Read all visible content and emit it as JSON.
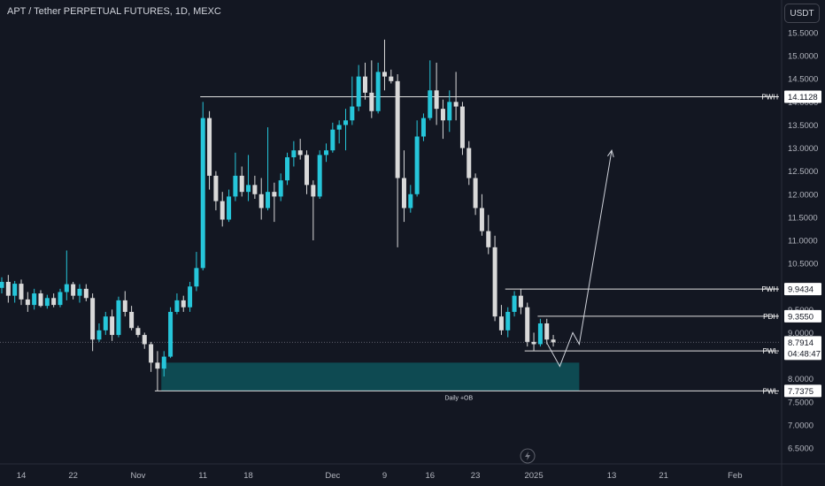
{
  "header": {
    "title": "APT / Tether PERPETUAL FUTURES, 1D, MEXC",
    "currency_button": "USDT"
  },
  "colors": {
    "background": "#131722",
    "bull": "#26c6da",
    "bear": "#d9d9d9",
    "level_line": "#e0e0e0",
    "zone": "#0e4a52",
    "axis_text": "#b2b5be"
  },
  "chart_data": {
    "type": "candlestick",
    "symbol": "APT / Tether PERPETUAL FUTURES",
    "timeframe": "1D",
    "exchange": "MEXC",
    "y_ticks": [
      "15.5000",
      "15.0000",
      "14.5000",
      "14.0000",
      "13.5000",
      "13.0000",
      "12.5000",
      "12.0000",
      "11.5000",
      "11.0000",
      "10.5000",
      "10.0000",
      "9.5000",
      "9.0000",
      "8.5000",
      "8.0000",
      "7.5000",
      "7.0000",
      "6.5000"
    ],
    "ylim": [
      6.2,
      15.75
    ],
    "x_ticks": [
      {
        "label": "14",
        "date": "2024-10-14"
      },
      {
        "label": "22",
        "date": "2024-10-22"
      },
      {
        "label": "Nov",
        "date": "2024-11-01"
      },
      {
        "label": "11",
        "date": "2024-11-11"
      },
      {
        "label": "18",
        "date": "2024-11-18"
      },
      {
        "label": "Dec",
        "date": "2024-12-01"
      },
      {
        "label": "9",
        "date": "2024-12-09"
      },
      {
        "label": "16",
        "date": "2024-12-16"
      },
      {
        "label": "23",
        "date": "2024-12-23"
      },
      {
        "label": "2025",
        "date": "2025-01-01"
      },
      {
        "label": "13",
        "date": "2025-01-13"
      },
      {
        "label": "21",
        "date": "2025-01-21"
      },
      {
        "label": "Feb",
        "date": "2025-02-01"
      }
    ],
    "candles": [
      {
        "date": "2024-10-07",
        "o": 8.95,
        "h": 9.15,
        "l": 8.68,
        "c": 8.9
      },
      {
        "date": "2024-10-08",
        "o": 8.9,
        "h": 9.3,
        "l": 8.8,
        "c": 9.25
      },
      {
        "date": "2024-10-09",
        "o": 9.25,
        "h": 9.85,
        "l": 9.15,
        "c": 9.78
      },
      {
        "date": "2024-10-10",
        "o": 9.78,
        "h": 10.05,
        "l": 9.68,
        "c": 9.97
      },
      {
        "date": "2024-10-11",
        "o": 9.97,
        "h": 10.2,
        "l": 9.85,
        "c": 10.1
      },
      {
        "date": "2024-10-12",
        "o": 10.1,
        "h": 10.25,
        "l": 9.65,
        "c": 9.8
      },
      {
        "date": "2024-10-13",
        "o": 9.8,
        "h": 10.12,
        "l": 9.65,
        "c": 10.06
      },
      {
        "date": "2024-10-14",
        "o": 10.06,
        "h": 10.15,
        "l": 9.6,
        "c": 9.72
      },
      {
        "date": "2024-10-15",
        "o": 9.72,
        "h": 9.88,
        "l": 9.45,
        "c": 9.6
      },
      {
        "date": "2024-10-16",
        "o": 9.6,
        "h": 9.95,
        "l": 9.5,
        "c": 9.85
      },
      {
        "date": "2024-10-17",
        "o": 9.85,
        "h": 9.92,
        "l": 9.55,
        "c": 9.58
      },
      {
        "date": "2024-10-18",
        "o": 9.58,
        "h": 9.82,
        "l": 9.52,
        "c": 9.75
      },
      {
        "date": "2024-10-19",
        "o": 9.75,
        "h": 9.85,
        "l": 9.55,
        "c": 9.6
      },
      {
        "date": "2024-10-20",
        "o": 9.6,
        "h": 9.95,
        "l": 9.55,
        "c": 9.88
      },
      {
        "date": "2024-10-21",
        "o": 9.88,
        "h": 10.78,
        "l": 9.7,
        "c": 10.05
      },
      {
        "date": "2024-10-22",
        "o": 10.05,
        "h": 10.1,
        "l": 9.72,
        "c": 9.8
      },
      {
        "date": "2024-10-23",
        "o": 9.8,
        "h": 10.05,
        "l": 9.65,
        "c": 9.95
      },
      {
        "date": "2024-10-24",
        "o": 9.95,
        "h": 10.05,
        "l": 9.68,
        "c": 9.75
      },
      {
        "date": "2024-10-25",
        "o": 9.75,
        "h": 9.85,
        "l": 8.6,
        "c": 8.85
      },
      {
        "date": "2024-10-26",
        "o": 8.85,
        "h": 9.2,
        "l": 8.8,
        "c": 9.05
      },
      {
        "date": "2024-10-27",
        "o": 9.05,
        "h": 9.45,
        "l": 8.95,
        "c": 9.35
      },
      {
        "date": "2024-10-28",
        "o": 9.35,
        "h": 9.5,
        "l": 8.82,
        "c": 8.95
      },
      {
        "date": "2024-10-29",
        "o": 8.95,
        "h": 9.78,
        "l": 8.9,
        "c": 9.7
      },
      {
        "date": "2024-10-30",
        "o": 9.7,
        "h": 9.9,
        "l": 9.35,
        "c": 9.45
      },
      {
        "date": "2024-10-31",
        "o": 9.45,
        "h": 9.58,
        "l": 9.05,
        "c": 9.1
      },
      {
        "date": "2024-11-01",
        "o": 9.1,
        "h": 9.15,
        "l": 8.9,
        "c": 8.95
      },
      {
        "date": "2024-11-02",
        "o": 8.95,
        "h": 9.0,
        "l": 8.65,
        "c": 8.75
      },
      {
        "date": "2024-11-03",
        "o": 8.75,
        "h": 8.8,
        "l": 8.15,
        "c": 8.35
      },
      {
        "date": "2024-11-04",
        "o": 8.35,
        "h": 8.6,
        "l": 7.74,
        "c": 8.22
      },
      {
        "date": "2024-11-05",
        "o": 8.22,
        "h": 8.6,
        "l": 8.05,
        "c": 8.48
      },
      {
        "date": "2024-11-06",
        "o": 8.48,
        "h": 9.55,
        "l": 8.45,
        "c": 9.45
      },
      {
        "date": "2024-11-07",
        "o": 9.45,
        "h": 9.85,
        "l": 9.4,
        "c": 9.7
      },
      {
        "date": "2024-11-08",
        "o": 9.7,
        "h": 9.8,
        "l": 9.45,
        "c": 9.55
      },
      {
        "date": "2024-11-09",
        "o": 9.55,
        "h": 10.1,
        "l": 9.45,
        "c": 10.0
      },
      {
        "date": "2024-11-10",
        "o": 10.0,
        "h": 10.75,
        "l": 9.9,
        "c": 10.4
      },
      {
        "date": "2024-11-11",
        "o": 10.4,
        "h": 14.0,
        "l": 10.35,
        "c": 13.65
      },
      {
        "date": "2024-11-12",
        "o": 13.65,
        "h": 13.8,
        "l": 12.1,
        "c": 12.4
      },
      {
        "date": "2024-11-13",
        "o": 12.4,
        "h": 12.5,
        "l": 11.65,
        "c": 11.85
      },
      {
        "date": "2024-11-14",
        "o": 11.85,
        "h": 12.05,
        "l": 11.3,
        "c": 11.45
      },
      {
        "date": "2024-11-15",
        "o": 11.45,
        "h": 12.1,
        "l": 11.4,
        "c": 11.95
      },
      {
        "date": "2024-11-16",
        "o": 11.95,
        "h": 12.9,
        "l": 11.85,
        "c": 12.4
      },
      {
        "date": "2024-11-17",
        "o": 12.4,
        "h": 12.6,
        "l": 11.95,
        "c": 12.05
      },
      {
        "date": "2024-11-18",
        "o": 12.05,
        "h": 12.85,
        "l": 11.85,
        "c": 12.2
      },
      {
        "date": "2024-11-19",
        "o": 12.2,
        "h": 12.4,
        "l": 11.9,
        "c": 12.0
      },
      {
        "date": "2024-11-20",
        "o": 12.0,
        "h": 12.35,
        "l": 11.45,
        "c": 11.7
      },
      {
        "date": "2024-11-21",
        "o": 11.7,
        "h": 13.45,
        "l": 11.65,
        "c": 12.05
      },
      {
        "date": "2024-11-22",
        "o": 12.05,
        "h": 12.25,
        "l": 11.4,
        "c": 11.95
      },
      {
        "date": "2024-11-23",
        "o": 11.95,
        "h": 12.45,
        "l": 11.85,
        "c": 12.3
      },
      {
        "date": "2024-11-24",
        "o": 12.3,
        "h": 12.9,
        "l": 12.2,
        "c": 12.8
      },
      {
        "date": "2024-11-25",
        "o": 12.8,
        "h": 13.15,
        "l": 12.6,
        "c": 12.95
      },
      {
        "date": "2024-11-26",
        "o": 12.95,
        "h": 13.2,
        "l": 12.75,
        "c": 12.85
      },
      {
        "date": "2024-11-27",
        "o": 12.85,
        "h": 12.95,
        "l": 12.0,
        "c": 12.2
      },
      {
        "date": "2024-11-28",
        "o": 12.2,
        "h": 12.3,
        "l": 11.0,
        "c": 11.95
      },
      {
        "date": "2024-11-29",
        "o": 11.95,
        "h": 12.95,
        "l": 11.9,
        "c": 12.85
      },
      {
        "date": "2024-11-30",
        "o": 12.85,
        "h": 13.1,
        "l": 12.7,
        "c": 12.95
      },
      {
        "date": "2024-12-01",
        "o": 12.95,
        "h": 13.55,
        "l": 12.9,
        "c": 13.4
      },
      {
        "date": "2024-12-02",
        "o": 13.4,
        "h": 13.6,
        "l": 13.1,
        "c": 13.5
      },
      {
        "date": "2024-12-03",
        "o": 13.5,
        "h": 13.85,
        "l": 12.95,
        "c": 13.6
      },
      {
        "date": "2024-12-04",
        "o": 13.6,
        "h": 14.55,
        "l": 13.5,
        "c": 13.9
      },
      {
        "date": "2024-12-05",
        "o": 13.9,
        "h": 14.8,
        "l": 13.8,
        "c": 14.55
      },
      {
        "date": "2024-12-06",
        "o": 14.55,
        "h": 14.85,
        "l": 14.05,
        "c": 14.2
      },
      {
        "date": "2024-12-07",
        "o": 14.2,
        "h": 14.9,
        "l": 13.65,
        "c": 13.8
      },
      {
        "date": "2024-12-08",
        "o": 13.8,
        "h": 14.85,
        "l": 13.75,
        "c": 14.65
      },
      {
        "date": "2024-12-09",
        "o": 14.65,
        "h": 15.35,
        "l": 14.25,
        "c": 14.55
      },
      {
        "date": "2024-12-10",
        "o": 14.55,
        "h": 14.7,
        "l": 14.4,
        "c": 14.45
      },
      {
        "date": "2024-12-11",
        "o": 14.45,
        "h": 14.6,
        "l": 10.85,
        "c": 12.35
      },
      {
        "date": "2024-12-12",
        "o": 12.35,
        "h": 12.95,
        "l": 11.4,
        "c": 11.7
      },
      {
        "date": "2024-12-13",
        "o": 11.7,
        "h": 12.2,
        "l": 11.6,
        "c": 12.0
      },
      {
        "date": "2024-12-14",
        "o": 12.0,
        "h": 13.6,
        "l": 11.95,
        "c": 13.25
      },
      {
        "date": "2024-12-15",
        "o": 13.25,
        "h": 13.75,
        "l": 13.15,
        "c": 13.65
      },
      {
        "date": "2024-12-16",
        "o": 13.65,
        "h": 14.9,
        "l": 13.6,
        "c": 14.25
      },
      {
        "date": "2024-12-17",
        "o": 14.25,
        "h": 14.85,
        "l": 13.5,
        "c": 13.85
      },
      {
        "date": "2024-12-18",
        "o": 13.85,
        "h": 14.05,
        "l": 13.2,
        "c": 13.6
      },
      {
        "date": "2024-12-19",
        "o": 13.6,
        "h": 14.25,
        "l": 13.35,
        "c": 14.0
      },
      {
        "date": "2024-12-20",
        "o": 14.0,
        "h": 14.65,
        "l": 13.6,
        "c": 13.9
      },
      {
        "date": "2024-12-21",
        "o": 13.9,
        "h": 14.0,
        "l": 12.85,
        "c": 13.0
      },
      {
        "date": "2024-12-22",
        "o": 13.0,
        "h": 13.15,
        "l": 12.2,
        "c": 12.35
      },
      {
        "date": "2024-12-23",
        "o": 12.35,
        "h": 12.45,
        "l": 11.55,
        "c": 11.7
      },
      {
        "date": "2024-12-24",
        "o": 11.7,
        "h": 12.0,
        "l": 11.1,
        "c": 11.2
      },
      {
        "date": "2024-12-25",
        "o": 11.2,
        "h": 11.55,
        "l": 10.7,
        "c": 10.85
      },
      {
        "date": "2024-12-26",
        "o": 10.85,
        "h": 11.1,
        "l": 9.25,
        "c": 9.35
      },
      {
        "date": "2024-12-27",
        "o": 9.35,
        "h": 9.6,
        "l": 8.95,
        "c": 9.05
      },
      {
        "date": "2024-12-28",
        "o": 9.05,
        "h": 9.55,
        "l": 8.9,
        "c": 9.45
      },
      {
        "date": "2024-12-29",
        "o": 9.45,
        "h": 9.9,
        "l": 9.35,
        "c": 9.8
      },
      {
        "date": "2024-12-30",
        "o": 9.8,
        "h": 9.95,
        "l": 9.4,
        "c": 9.55
      },
      {
        "date": "2024-12-31",
        "o": 9.55,
        "h": 9.65,
        "l": 8.7,
        "c": 8.8
      },
      {
        "date": "2025-01-01",
        "o": 8.8,
        "h": 9.0,
        "l": 8.6,
        "c": 8.75
      },
      {
        "date": "2025-01-02",
        "o": 8.75,
        "h": 9.3,
        "l": 8.7,
        "c": 9.2
      },
      {
        "date": "2025-01-03",
        "o": 9.2,
        "h": 9.3,
        "l": 8.75,
        "c": 8.85
      },
      {
        "date": "2025-01-04",
        "o": 8.85,
        "h": 8.95,
        "l": 8.7,
        "c": 8.79
      }
    ],
    "levels": [
      {
        "label": "PWH",
        "value": 14.1128,
        "value_text": "14.1128",
        "from": "2024-11-11"
      },
      {
        "label": "PWH",
        "value": 9.9434,
        "value_text": "9.9434",
        "from": "2024-12-28"
      },
      {
        "label": "PDH",
        "value": 9.355,
        "value_text": "9.3550",
        "from": "2025-01-02"
      },
      {
        "label": "PWL",
        "value": 8.6044,
        "value_text": "8.6044",
        "from": "2024-12-31"
      },
      {
        "label": "PWL",
        "value": 7.7375,
        "value_text": "7.7375",
        "from": "2024-11-04"
      }
    ],
    "current_price": {
      "value": 8.7914,
      "value_text": "8.7914",
      "countdown": "04:48:47"
    },
    "zones": [
      {
        "label": "Daily +OB",
        "top": 8.35,
        "bottom": 7.7375,
        "from": "2024-11-05",
        "to": "2025-01-08"
      }
    ],
    "projection_path": [
      {
        "date": "2025-01-03",
        "value": 8.78
      },
      {
        "date": "2025-01-05",
        "value": 8.27
      },
      {
        "date": "2025-01-07",
        "value": 9.0
      },
      {
        "date": "2025-01-08",
        "value": 8.75
      },
      {
        "date": "2025-01-13",
        "value": 12.95
      }
    ],
    "grid": false,
    "legend": "none"
  }
}
